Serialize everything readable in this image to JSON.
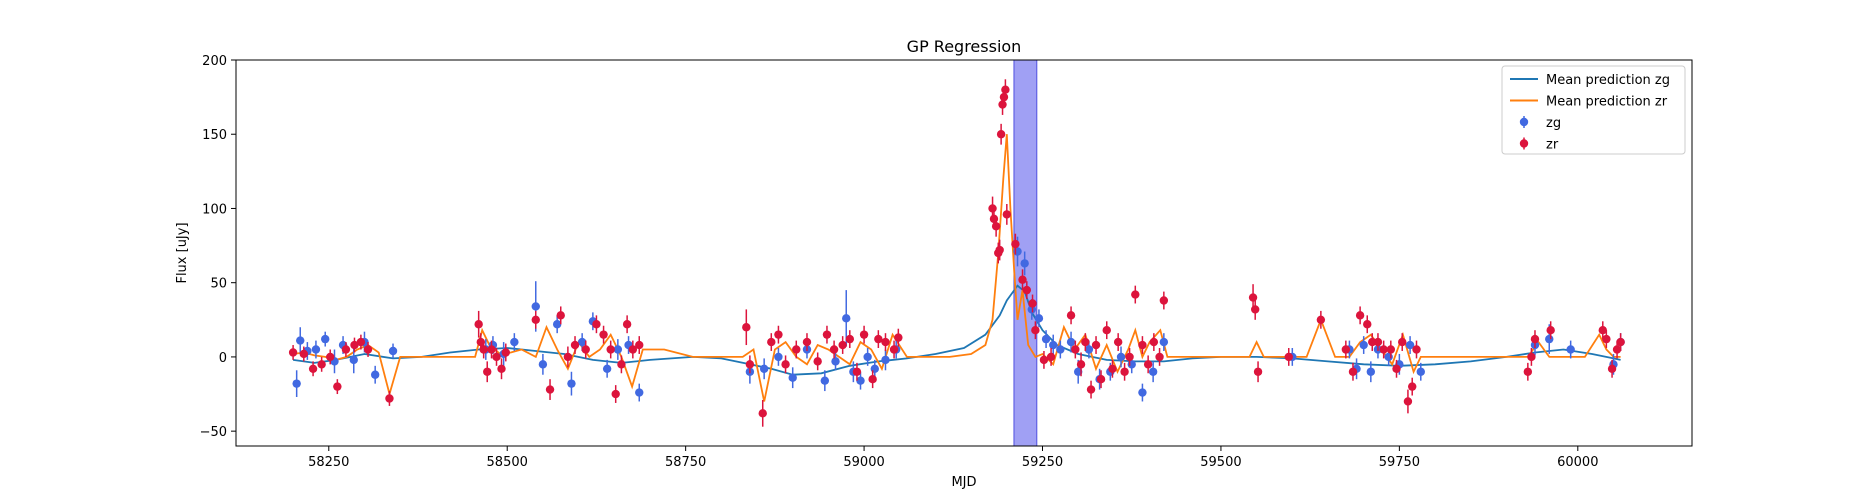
{
  "chart_data": {
    "type": "scatter",
    "title": "GP Regression",
    "xlabel": "MJD",
    "ylabel": "Flux [uJy]",
    "xlim": [
      58120,
      60160
    ],
    "ylim": [
      -60,
      200
    ],
    "xticks": [
      58250,
      58500,
      58750,
      59000,
      59250,
      59500,
      59750,
      60000
    ],
    "yticks": [
      -50,
      0,
      50,
      100,
      150,
      200
    ],
    "legend_position": "top-right",
    "shaded_region": {
      "x_start": 59210,
      "x_end": 59242,
      "color": "#8080f0"
    },
    "series": [
      {
        "name": "Mean prediction zg",
        "kind": "line",
        "color": "#1f77b4",
        "x": [
          58200,
          58230,
          58260,
          58300,
          58340,
          58380,
          58420,
          58460,
          58500,
          58540,
          58580,
          58620,
          58660,
          58700,
          58760,
          58800,
          58840,
          58870,
          58900,
          58940,
          58980,
          59020,
          59060,
          59100,
          59140,
          59170,
          59190,
          59200,
          59215,
          59225,
          59235,
          59250,
          59270,
          59300,
          59340,
          59380,
          59420,
          59460,
          59500,
          59550,
          59600,
          59650,
          59700,
          59750,
          59800,
          59850,
          59900,
          59940,
          59980,
          60020,
          60050,
          60060
        ],
        "y": [
          -2,
          -4,
          -2,
          2,
          -1,
          0,
          3,
          5,
          6,
          4,
          2,
          -2,
          -4,
          -2,
          0,
          -1,
          -5,
          -8,
          -12,
          -11,
          -6,
          -3,
          -1,
          2,
          6,
          15,
          28,
          38,
          48,
          44,
          30,
          18,
          8,
          2,
          -2,
          -3,
          -3,
          -1,
          0,
          0,
          -1,
          -3,
          -5,
          -6,
          -5,
          -3,
          0,
          3,
          5,
          2,
          -1,
          -2
        ]
      },
      {
        "name": "Mean prediction zr",
        "kind": "line",
        "color": "#ff7f0e",
        "x": [
          58200,
          58215,
          58230,
          58245,
          58260,
          58275,
          58290,
          58305,
          58320,
          58335,
          58350,
          58380,
          58420,
          58455,
          58465,
          58475,
          58490,
          58505,
          58520,
          58540,
          58555,
          58570,
          58585,
          58600,
          58615,
          58630,
          58645,
          58660,
          58675,
          58690,
          58720,
          58760,
          58800,
          58830,
          58845,
          58860,
          58875,
          58890,
          58905,
          58920,
          58935,
          58950,
          58965,
          58980,
          58995,
          59010,
          59025,
          59040,
          59060,
          59090,
          59120,
          59150,
          59170,
          59180,
          59188,
          59195,
          59200,
          59205,
          59210,
          59215,
          59222,
          59230,
          59240,
          59250,
          59265,
          59280,
          59295,
          59310,
          59325,
          59340,
          59355,
          59370,
          59380,
          59390,
          59400,
          59415,
          59425,
          59440,
          59470,
          59510,
          59540,
          59550,
          59560,
          59590,
          59620,
          59640,
          59660,
          59680,
          59695,
          59710,
          59725,
          59740,
          59755,
          59770,
          59780,
          59800,
          59850,
          59900,
          59930,
          59945,
          59960,
          59980,
          60010,
          60030,
          60040,
          60050,
          60060
        ],
        "y": [
          2,
          3,
          1,
          0,
          -2,
          0,
          5,
          8,
          3,
          -25,
          0,
          0,
          0,
          0,
          18,
          8,
          2,
          3,
          5,
          0,
          20,
          5,
          -8,
          10,
          0,
          5,
          15,
          0,
          -20,
          5,
          5,
          0,
          0,
          0,
          5,
          -30,
          5,
          10,
          0,
          -5,
          8,
          5,
          0,
          -5,
          10,
          5,
          -8,
          15,
          0,
          0,
          0,
          2,
          8,
          25,
          70,
          120,
          150,
          100,
          60,
          25,
          45,
          8,
          0,
          2,
          -5,
          20,
          5,
          15,
          -8,
          8,
          -10,
          5,
          18,
          0,
          10,
          18,
          0,
          0,
          0,
          0,
          0,
          10,
          0,
          0,
          0,
          25,
          0,
          0,
          10,
          15,
          5,
          -5,
          15,
          -10,
          0,
          0,
          0,
          0,
          0,
          10,
          0,
          0,
          0,
          15,
          5,
          0,
          0
        ]
      },
      {
        "name": "zg",
        "kind": "errorbar",
        "color": "#4169e1",
        "x": [
          58205,
          58210,
          58220,
          58232,
          58245,
          58258,
          58270,
          58285,
          58300,
          58315,
          58340,
          58470,
          58480,
          58495,
          58510,
          58540,
          58550,
          58570,
          58590,
          58605,
          58620,
          58640,
          58655,
          58670,
          58685,
          58840,
          58860,
          58880,
          58900,
          58920,
          58945,
          58960,
          58975,
          58985,
          58995,
          59005,
          59015,
          59030,
          59045,
          59215,
          59225,
          59235,
          59245,
          59255,
          59265,
          59275,
          59290,
          59300,
          59315,
          59330,
          59345,
          59360,
          59375,
          59390,
          59405,
          59420,
          59600,
          59680,
          59690,
          59700,
          59710,
          59720,
          59735,
          59750,
          59765,
          59780,
          59940,
          59960,
          59990,
          60050,
          60060
        ],
        "y": [
          -18,
          11,
          4,
          5,
          12,
          -3,
          8,
          -2,
          10,
          -12,
          4,
          5,
          8,
          2,
          10,
          34,
          -5,
          22,
          -18,
          10,
          24,
          -8,
          5,
          8,
          -24,
          -10,
          -8,
          0,
          -14,
          5,
          -16,
          -3,
          26,
          -10,
          -16,
          0,
          -8,
          -2,
          5,
          71,
          63,
          32,
          26,
          12,
          8,
          5,
          10,
          -10,
          5,
          -15,
          -10,
          0,
          -5,
          -24,
          -10,
          10,
          0,
          5,
          -8,
          8,
          -10,
          5,
          0,
          -5,
          8,
          -10,
          8,
          12,
          5,
          -5,
          10
        ],
        "yerr": [
          9,
          9,
          6,
          6,
          5,
          8,
          6,
          9,
          7,
          6,
          5,
          7,
          6,
          8,
          6,
          17,
          7,
          6,
          8,
          6,
          6,
          6,
          7,
          6,
          6,
          8,
          7,
          6,
          7,
          6,
          7,
          6,
          19,
          7,
          6,
          6,
          6,
          7,
          6,
          10,
          8,
          7,
          6,
          6,
          7,
          6,
          7,
          8,
          6,
          7,
          6,
          7,
          6,
          6,
          7,
          6,
          6,
          6,
          7,
          6,
          7,
          6,
          6,
          7,
          6,
          6,
          7,
          10,
          6,
          7,
          6
        ]
      },
      {
        "name": "zr",
        "kind": "errorbar",
        "color": "#dc143c",
        "x": [
          58200,
          58215,
          58228,
          58240,
          58252,
          58262,
          58274,
          58286,
          58295,
          58305,
          58335,
          58460,
          58463,
          58467,
          58472,
          58478,
          58485,
          58492,
          58498,
          58540,
          58560,
          58575,
          58585,
          58595,
          58610,
          58625,
          58635,
          58645,
          58652,
          58660,
          58668,
          58676,
          58685,
          58835,
          58840,
          58858,
          58870,
          58880,
          58890,
          58905,
          58920,
          58935,
          58948,
          58958,
          58970,
          58980,
          58990,
          59000,
          59012,
          59020,
          59030,
          59042,
          59048,
          59180,
          59182,
          59185,
          59188,
          59190,
          59192,
          59194,
          59196,
          59198,
          59200,
          59212,
          59222,
          59228,
          59236,
          59240,
          59252,
          59262,
          59290,
          59296,
          59304,
          59310,
          59318,
          59325,
          59332,
          59340,
          59348,
          59356,
          59365,
          59372,
          59380,
          59390,
          59398,
          59406,
          59414,
          59420,
          59545,
          59548,
          59552,
          59595,
          59640,
          59675,
          59685,
          59695,
          59705,
          59712,
          59720,
          59728,
          59738,
          59746,
          59754,
          59762,
          59768,
          59774,
          59930,
          59935,
          59940,
          59962,
          60035,
          60040,
          60048,
          60055,
          60060
        ],
        "y": [
          3,
          2,
          -8,
          -5,
          0,
          -20,
          5,
          8,
          10,
          5,
          -28,
          22,
          10,
          5,
          -10,
          5,
          0,
          -8,
          3,
          25,
          -22,
          28,
          0,
          8,
          5,
          22,
          15,
          5,
          -25,
          -5,
          22,
          5,
          8,
          20,
          -5,
          -38,
          10,
          15,
          -5,
          5,
          10,
          -3,
          15,
          5,
          8,
          12,
          -10,
          15,
          -15,
          12,
          10,
          5,
          13,
          100,
          93,
          88,
          70,
          72,
          150,
          170,
          175,
          180,
          96,
          76,
          52,
          45,
          36,
          18,
          -2,
          0,
          28,
          5,
          -5,
          10,
          -22,
          8,
          -15,
          18,
          -8,
          10,
          -10,
          0,
          42,
          8,
          -5,
          10,
          0,
          38,
          40,
          32,
          -10,
          0,
          25,
          5,
          -10,
          28,
          22,
          10,
          10,
          5,
          5,
          -8,
          10,
          -30,
          -20,
          5,
          -10,
          0,
          12,
          18,
          18,
          12,
          -8,
          5,
          10
        ],
        "yerr": [
          5,
          5,
          5,
          5,
          5,
          5,
          5,
          5,
          5,
          5,
          5,
          9,
          6,
          6,
          7,
          6,
          6,
          7,
          6,
          6,
          7,
          6,
          7,
          6,
          6,
          6,
          6,
          6,
          6,
          6,
          6,
          6,
          6,
          12,
          6,
          9,
          6,
          6,
          6,
          6,
          6,
          6,
          6,
          6,
          6,
          6,
          6,
          6,
          6,
          6,
          6,
          6,
          6,
          8,
          7,
          7,
          7,
          7,
          7,
          7,
          7,
          7,
          7,
          7,
          7,
          6,
          6,
          6,
          6,
          6,
          6,
          6,
          8,
          6,
          6,
          6,
          6,
          6,
          6,
          6,
          6,
          6,
          6,
          6,
          6,
          6,
          6,
          6,
          9,
          7,
          7,
          6,
          6,
          6,
          6,
          6,
          6,
          6,
          6,
          6,
          6,
          6,
          6,
          8,
          6,
          6,
          6,
          6,
          6,
          6,
          6,
          6,
          6,
          6,
          6
        ]
      }
    ]
  }
}
